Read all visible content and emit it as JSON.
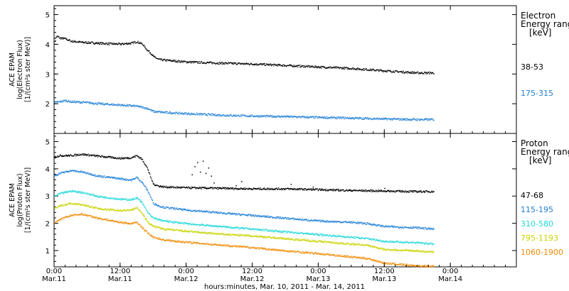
{
  "chart_data": [
    {
      "type": "scatter",
      "panel": "electron",
      "ylabel_lines": [
        "ACE EPAM",
        "log(Electron Flux)",
        "[1/(cm²s ster MeV)]"
      ],
      "ylim": [
        1,
        5.3
      ],
      "yticks": [
        1,
        2,
        3,
        4,
        5
      ],
      "ytick_labels": [
        "",
        "2",
        "3",
        "4",
        "5"
      ],
      "legend_title_lines": [
        "Electron",
        "Energy ranges",
        "[keV]"
      ],
      "series": [
        {
          "name": "38-53",
          "color": "#000000",
          "points": [
            [
              0,
              4.05
            ],
            [
              0.2,
              4.15
            ],
            [
              0.3,
              4.25
            ],
            [
              0.5,
              4.28
            ],
            [
              0.8,
              4.25
            ],
            [
              1,
              4.22
            ],
            [
              2,
              4.2
            ],
            [
              3,
              4.12
            ],
            [
              5,
              4.08
            ],
            [
              8,
              4.05
            ],
            [
              10,
              4.03
            ],
            [
              12,
              4.02
            ],
            [
              14,
              4.05
            ],
            [
              15,
              4.1
            ],
            [
              16,
              4.02
            ],
            [
              16.5,
              3.9
            ],
            [
              17,
              3.8
            ],
            [
              17.5,
              3.72
            ],
            [
              18,
              3.6
            ],
            [
              18.5,
              3.55
            ],
            [
              19,
              3.5
            ],
            [
              20,
              3.48
            ],
            [
              22,
              3.45
            ],
            [
              24,
              3.42
            ],
            [
              30,
              3.38
            ],
            [
              36,
              3.35
            ],
            [
              42,
              3.3
            ],
            [
              48,
              3.25
            ],
            [
              54,
              3.2
            ],
            [
              60,
              3.12
            ],
            [
              66,
              3.05
            ],
            [
              69,
              3.05
            ]
          ]
        },
        {
          "name": "175-315",
          "color": "#1e7fd6",
          "points": [
            [
              0,
              2.05
            ],
            [
              1,
              2.08
            ],
            [
              2,
              2.12
            ],
            [
              3,
              2.08
            ],
            [
              6,
              2.05
            ],
            [
              9,
              2.0
            ],
            [
              12,
              1.97
            ],
            [
              15,
              1.93
            ],
            [
              17,
              1.85
            ],
            [
              18,
              1.75
            ],
            [
              20,
              1.72
            ],
            [
              24,
              1.68
            ],
            [
              30,
              1.63
            ],
            [
              36,
              1.6
            ],
            [
              42,
              1.58
            ],
            [
              48,
              1.55
            ],
            [
              54,
              1.53
            ],
            [
              60,
              1.5
            ],
            [
              66,
              1.48
            ],
            [
              69,
              1.48
            ]
          ]
        }
      ]
    },
    {
      "type": "scatter",
      "panel": "proton",
      "ylabel_lines": [
        "ACE EPAM",
        "log(Proton Flux)",
        "[1/(cm²s ster MeV)]"
      ],
      "ylim": [
        0.4,
        5.3
      ],
      "yticks": [
        1,
        2,
        3,
        4,
        5
      ],
      "ytick_labels": [
        "1",
        "2",
        "3",
        "4",
        "5"
      ],
      "legend_title_lines": [
        "Proton",
        "Energy ranges",
        "[keV]"
      ],
      "series": [
        {
          "name": "47-68",
          "color": "#000000",
          "points": [
            [
              0,
              4.45
            ],
            [
              1,
              4.5
            ],
            [
              3,
              4.5
            ],
            [
              5,
              4.55
            ],
            [
              8,
              4.48
            ],
            [
              12,
              4.4
            ],
            [
              14,
              4.42
            ],
            [
              15,
              4.5
            ],
            [
              16,
              4.35
            ],
            [
              17,
              4.0
            ],
            [
              17.5,
              3.7
            ],
            [
              18,
              3.45
            ],
            [
              19,
              3.38
            ],
            [
              20,
              3.35
            ],
            [
              24,
              3.32
            ],
            [
              30,
              3.3
            ],
            [
              36,
              3.28
            ],
            [
              42,
              3.28
            ],
            [
              48,
              3.25
            ],
            [
              54,
              3.22
            ],
            [
              60,
              3.2
            ],
            [
              66,
              3.18
            ],
            [
              69,
              3.18
            ]
          ],
          "extra_points": [
            [
              25,
              3.8
            ],
            [
              25.5,
              4.1
            ],
            [
              26,
              4.25
            ],
            [
              26.5,
              3.9
            ],
            [
              27,
              4.3
            ],
            [
              27.5,
              3.85
            ],
            [
              28,
              4.05
            ],
            [
              28.5,
              3.75
            ],
            [
              29,
              3.5
            ],
            [
              33,
              3.4
            ],
            [
              34,
              3.55
            ],
            [
              43,
              3.45
            ],
            [
              47,
              3.35
            ],
            [
              60,
              3.3
            ]
          ]
        },
        {
          "name": "115-195",
          "color": "#1e7fd6",
          "points": [
            [
              0,
              3.75
            ],
            [
              1,
              3.85
            ],
            [
              3,
              3.95
            ],
            [
              5,
              3.9
            ],
            [
              8,
              3.75
            ],
            [
              12,
              3.65
            ],
            [
              14,
              3.6
            ],
            [
              15,
              3.7
            ],
            [
              16,
              3.5
            ],
            [
              17,
              3.2
            ],
            [
              18,
              2.75
            ],
            [
              19,
              2.65
            ],
            [
              20,
              2.6
            ],
            [
              24,
              2.5
            ],
            [
              30,
              2.4
            ],
            [
              36,
              2.3
            ],
            [
              42,
              2.2
            ],
            [
              48,
              2.1
            ],
            [
              54,
              2.05
            ],
            [
              57,
              2.0
            ],
            [
              60,
              1.9
            ],
            [
              66,
              1.85
            ],
            [
              69,
              1.8
            ]
          ]
        },
        {
          "name": "310-580",
          "color": "#22d8d8",
          "points": [
            [
              0,
              3.0
            ],
            [
              1,
              3.1
            ],
            [
              3,
              3.2
            ],
            [
              5,
              3.15
            ],
            [
              8,
              3.0
            ],
            [
              12,
              2.9
            ],
            [
              14,
              2.88
            ],
            [
              15,
              2.95
            ],
            [
              16,
              2.75
            ],
            [
              17,
              2.4
            ],
            [
              18,
              2.2
            ],
            [
              20,
              2.1
            ],
            [
              24,
              2.0
            ],
            [
              30,
              1.9
            ],
            [
              36,
              1.8
            ],
            [
              42,
              1.7
            ],
            [
              48,
              1.6
            ],
            [
              54,
              1.5
            ],
            [
              57,
              1.45
            ],
            [
              60,
              1.35
            ],
            [
              66,
              1.3
            ],
            [
              69,
              1.25
            ]
          ]
        },
        {
          "name": "795-1193",
          "color": "#c8d400",
          "points": [
            [
              0,
              2.55
            ],
            [
              1,
              2.65
            ],
            [
              3,
              2.75
            ],
            [
              5,
              2.7
            ],
            [
              8,
              2.55
            ],
            [
              12,
              2.48
            ],
            [
              14,
              2.5
            ],
            [
              15,
              2.6
            ],
            [
              16,
              2.35
            ],
            [
              17,
              2.05
            ],
            [
              18,
              1.9
            ],
            [
              20,
              1.8
            ],
            [
              24,
              1.72
            ],
            [
              30,
              1.62
            ],
            [
              36,
              1.55
            ],
            [
              42,
              1.45
            ],
            [
              48,
              1.35
            ],
            [
              54,
              1.25
            ],
            [
              57,
              1.2
            ],
            [
              60,
              1.05
            ],
            [
              66,
              1.0
            ],
            [
              69,
              0.95
            ]
          ]
        },
        {
          "name": "1060-1900",
          "color": "#f08a00",
          "points": [
            [
              0,
              2.05
            ],
            [
              1,
              2.15
            ],
            [
              3,
              2.3
            ],
            [
              5,
              2.35
            ],
            [
              8,
              2.2
            ],
            [
              12,
              2.05
            ],
            [
              14,
              2.0
            ],
            [
              15,
              2.05
            ],
            [
              16,
              1.85
            ],
            [
              17,
              1.65
            ],
            [
              18,
              1.5
            ],
            [
              20,
              1.4
            ],
            [
              24,
              1.32
            ],
            [
              30,
              1.22
            ],
            [
              36,
              1.12
            ],
            [
              42,
              1.0
            ],
            [
              48,
              0.9
            ],
            [
              54,
              0.78
            ],
            [
              57,
              0.72
            ],
            [
              60,
              0.55
            ],
            [
              66,
              0.45
            ],
            [
              69,
              0.43
            ]
          ]
        }
      ]
    }
  ],
  "x_axis": {
    "range": [
      0,
      84
    ],
    "units": "hours",
    "ticks": [
      0,
      12,
      24,
      36,
      48,
      60,
      72
    ],
    "tick_time_labels": [
      "0:00",
      "12:00",
      "0:00",
      "12:00",
      "0:00",
      "12:00",
      "0:00"
    ],
    "tick_date_labels": [
      "Mar.11",
      "Mar.11",
      "Mar.12",
      "Mar.12",
      "Mar.13",
      "Mar.13",
      "Mar.14"
    ],
    "xlabel": "hours:minutes, Mar. 10, 2011 - Mar. 14, 2011"
  },
  "colors": {
    "background": "#ffffff",
    "axes": "#000000"
  }
}
